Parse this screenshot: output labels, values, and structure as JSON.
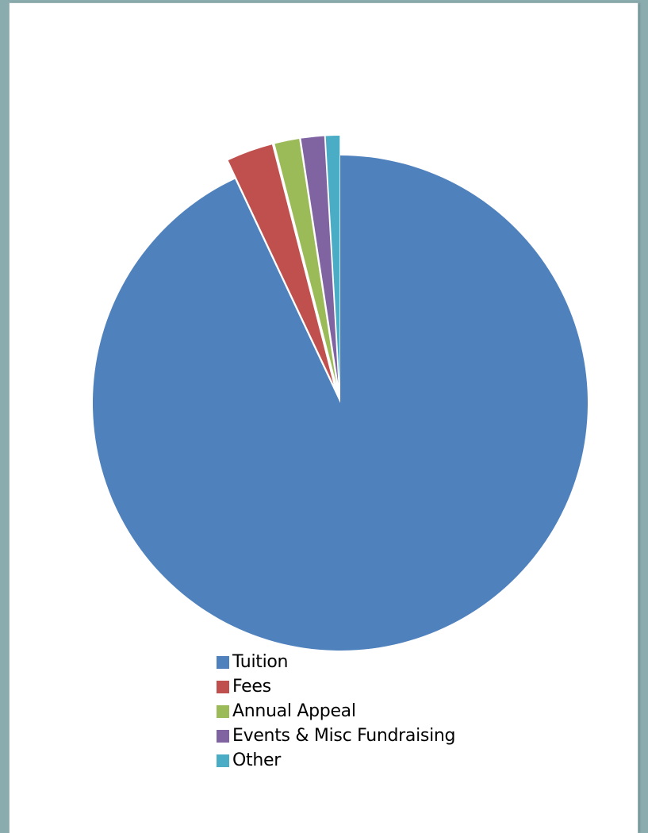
{
  "chart_data": {
    "type": "pie",
    "exploded": true,
    "start_angle_deg": 0,
    "direction": "clockwise",
    "slices": [
      {
        "label": "Tuition",
        "value": 93.0,
        "color": "#4f81bd"
      },
      {
        "label": "Fees",
        "value": 3.0,
        "color": "#c0504d"
      },
      {
        "label": "Annual Appeal",
        "value": 1.6,
        "color": "#9bbb59"
      },
      {
        "label": "Events & Misc Fundraising",
        "value": 1.5,
        "color": "#8064a2"
      },
      {
        "label": "Other",
        "value": 0.9,
        "color": "#4bacc6"
      }
    ],
    "legend_position": "bottom"
  }
}
